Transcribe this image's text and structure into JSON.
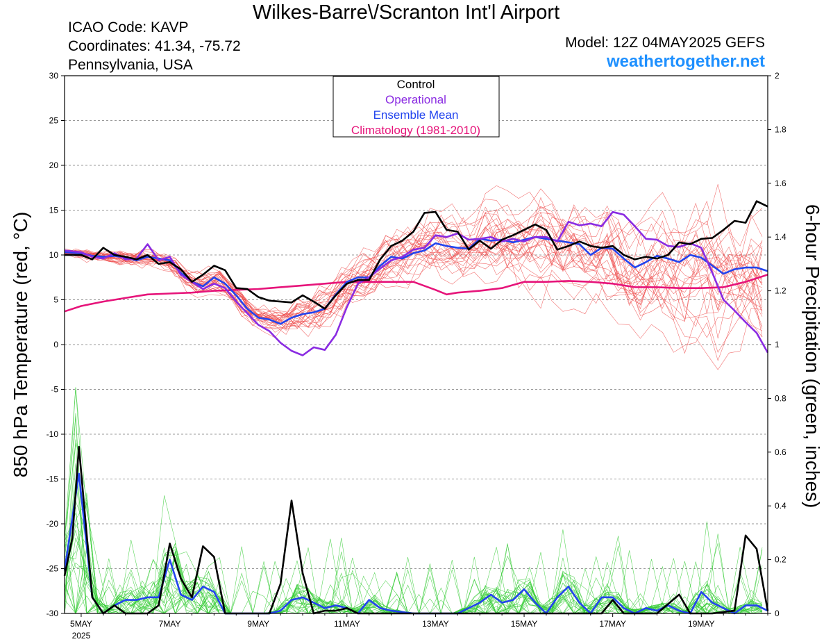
{
  "header": {
    "title": "Wilkes-Barre\\/Scranton Int'l Airport",
    "icao": "ICAO Code: KAVP",
    "coords": "Coordinates: 41.34, -75.72",
    "region": "Pennsylvania, USA",
    "model": "Model: 12Z 04MAY2025 GEFS",
    "site": "weathertogether.net"
  },
  "chart_data": {
    "type": "line",
    "ylabel": "850 hPa Temperature (red, °C)",
    "y2label": "6-hour Precipitation (green, inches)",
    "ylim": [
      -30,
      30
    ],
    "y2lim": [
      0,
      2
    ],
    "yticks": [
      30,
      25,
      20,
      15,
      10,
      5,
      0,
      -5,
      -10,
      -15,
      -20,
      -25,
      -30
    ],
    "y2ticks": [
      "2",
      "1.8",
      "1.6",
      "1.4",
      "1.2",
      "1",
      "0.8",
      "0.6",
      "0.4",
      "0.2",
      "0"
    ],
    "xlim_days": [
      4.625,
      20.5
    ],
    "xticks": [
      {
        "day": 5,
        "label": "5MAY"
      },
      {
        "day": 7,
        "label": "7MAY"
      },
      {
        "day": 9,
        "label": "9MAY"
      },
      {
        "day": 11,
        "label": "11MAY"
      },
      {
        "day": 13,
        "label": "13MAY"
      },
      {
        "day": 15,
        "label": "15MAY"
      },
      {
        "day": 17,
        "label": "17MAY"
      },
      {
        "day": 19,
        "label": "19MAY"
      }
    ],
    "year_label": "2025",
    "grid": "horizontal dashed",
    "legend": {
      "placement": "top-center",
      "entries": [
        {
          "label": "Control",
          "color": "#000000"
        },
        {
          "label": "Operational",
          "color": "#8a2be2"
        },
        {
          "label": "Ensemble Mean",
          "color": "#2244ee"
        },
        {
          "label": "Climatology (1981-2010)",
          "color": "#e6147a"
        }
      ]
    },
    "colors": {
      "control": "#000000",
      "operational": "#8a2be2",
      "mean": "#2244ee",
      "climatology": "#e6147a",
      "member_temp": "#ee4444",
      "member_precip": "#33cc33"
    },
    "temperature": {
      "control": [
        [
          4.625,
          10
        ],
        [
          5,
          10
        ],
        [
          5.25,
          9.5
        ],
        [
          5.5,
          10.8
        ],
        [
          5.75,
          10
        ],
        [
          6,
          9.8
        ],
        [
          6.25,
          9.5
        ],
        [
          6.5,
          10
        ],
        [
          6.75,
          9
        ],
        [
          7,
          9.2
        ],
        [
          7.25,
          8.4
        ],
        [
          7.5,
          7
        ],
        [
          7.75,
          7.8
        ],
        [
          8,
          8.8
        ],
        [
          8.25,
          8.3
        ],
        [
          8.5,
          6.3
        ],
        [
          8.75,
          6.2
        ],
        [
          9,
          5.3
        ],
        [
          9.25,
          4.9
        ],
        [
          9.5,
          4.8
        ],
        [
          9.75,
          4.7
        ],
        [
          10,
          5.5
        ],
        [
          10.25,
          4.8
        ],
        [
          10.5,
          4
        ],
        [
          10.75,
          5.5
        ],
        [
          11,
          6.8
        ],
        [
          11.25,
          7.2
        ],
        [
          11.5,
          7.2
        ],
        [
          11.75,
          9.5
        ],
        [
          12,
          11
        ],
        [
          12.25,
          11.6
        ],
        [
          12.5,
          12.6
        ],
        [
          12.75,
          14.7
        ],
        [
          13,
          14.8
        ],
        [
          13.25,
          12.8
        ],
        [
          13.5,
          12.6
        ],
        [
          13.75,
          10.6
        ],
        [
          14,
          11.6
        ],
        [
          14.25,
          10.7
        ],
        [
          14.5,
          11.7
        ],
        [
          14.75,
          12.2
        ],
        [
          15,
          12.8
        ],
        [
          15.25,
          13.4
        ],
        [
          15.5,
          12.8
        ],
        [
          15.75,
          10.6
        ],
        [
          16,
          11
        ],
        [
          16.25,
          11.5
        ],
        [
          16.5,
          11
        ],
        [
          16.75,
          10.8
        ],
        [
          17,
          11
        ],
        [
          17.25,
          10
        ],
        [
          17.5,
          9.5
        ],
        [
          17.75,
          9.8
        ],
        [
          18,
          9.6
        ],
        [
          18.25,
          10
        ],
        [
          18.5,
          11.4
        ],
        [
          18.75,
          11.2
        ],
        [
          19,
          11.8
        ],
        [
          19.25,
          11.9
        ],
        [
          19.5,
          12.8
        ],
        [
          19.75,
          13.8
        ],
        [
          20,
          13.6
        ],
        [
          20.25,
          16
        ],
        [
          20.5,
          15.4
        ]
      ],
      "operational": [
        [
          4.625,
          10.5
        ],
        [
          5,
          10.3
        ],
        [
          5.25,
          9.8
        ],
        [
          5.5,
          9.6
        ],
        [
          5.75,
          10.2
        ],
        [
          6,
          9.5
        ],
        [
          6.25,
          9.6
        ],
        [
          6.5,
          11.2
        ],
        [
          6.75,
          9.4
        ],
        [
          7,
          9.8
        ],
        [
          7.25,
          7.8
        ],
        [
          7.5,
          7
        ],
        [
          7.75,
          6.2
        ],
        [
          8,
          6.8
        ],
        [
          8.25,
          6.3
        ],
        [
          8.5,
          4.8
        ],
        [
          8.75,
          3.5
        ],
        [
          9,
          2.2
        ],
        [
          9.25,
          1.5
        ],
        [
          9.5,
          0.2
        ],
        [
          9.75,
          -0.7
        ],
        [
          10,
          -1.2
        ],
        [
          10.25,
          -0.3
        ],
        [
          10.5,
          -0.6
        ],
        [
          10.75,
          1.1
        ],
        [
          11,
          4.2
        ],
        [
          11.25,
          6.8
        ],
        [
          11.5,
          7.5
        ],
        [
          11.75,
          8.5
        ],
        [
          12,
          9.4
        ],
        [
          12.25,
          9.8
        ],
        [
          12.5,
          10.6
        ],
        [
          12.75,
          10.8
        ],
        [
          13,
          12.2
        ],
        [
          13.25,
          12
        ],
        [
          13.5,
          12.4
        ],
        [
          13.75,
          11.7
        ],
        [
          14,
          11.8
        ],
        [
          14.25,
          12
        ],
        [
          14.5,
          11.5
        ],
        [
          14.75,
          11.8
        ],
        [
          15,
          11.5
        ],
        [
          15.25,
          12
        ],
        [
          15.5,
          12
        ],
        [
          15.75,
          11.5
        ],
        [
          16,
          13.7
        ],
        [
          16.25,
          13.3
        ],
        [
          16.5,
          13.5
        ],
        [
          16.75,
          13.2
        ],
        [
          17,
          14.8
        ],
        [
          17.25,
          14.5
        ],
        [
          17.5,
          13.2
        ],
        [
          17.75,
          11.8
        ],
        [
          18,
          11.7
        ],
        [
          18.25,
          11
        ],
        [
          18.5,
          10.9
        ],
        [
          18.75,
          11.3
        ],
        [
          19,
          10.8
        ],
        [
          19.25,
          8
        ],
        [
          19.5,
          5
        ],
        [
          19.75,
          3.8
        ],
        [
          20,
          2.5
        ],
        [
          20.25,
          1.3
        ],
        [
          20.5,
          -0.9
        ]
      ],
      "mean": [
        [
          4.625,
          10.3
        ],
        [
          5,
          10.2
        ],
        [
          5.25,
          9.9
        ],
        [
          5.5,
          9.8
        ],
        [
          5.75,
          9.9
        ],
        [
          6,
          9.7
        ],
        [
          6.25,
          9.4
        ],
        [
          6.5,
          9.8
        ],
        [
          6.75,
          9.6
        ],
        [
          7,
          9.4
        ],
        [
          7.25,
          8
        ],
        [
          7.5,
          7
        ],
        [
          7.75,
          6.5
        ],
        [
          8,
          7.5
        ],
        [
          8.25,
          6.8
        ],
        [
          8.5,
          5.5
        ],
        [
          8.75,
          4
        ],
        [
          9,
          3
        ],
        [
          9.25,
          2.8
        ],
        [
          9.5,
          2.3
        ],
        [
          9.75,
          3
        ],
        [
          10,
          3.4
        ],
        [
          10.25,
          3.6
        ],
        [
          10.5,
          4
        ],
        [
          10.75,
          5.6
        ],
        [
          11,
          7
        ],
        [
          11.25,
          7.5
        ],
        [
          11.5,
          7.5
        ],
        [
          11.75,
          8.8
        ],
        [
          12,
          9.8
        ],
        [
          12.25,
          9.6
        ],
        [
          12.5,
          10.2
        ],
        [
          12.75,
          10.5
        ],
        [
          13,
          11.3
        ],
        [
          13.25,
          11
        ],
        [
          13.5,
          10.8
        ],
        [
          13.75,
          10.7
        ],
        [
          14,
          11.8
        ],
        [
          14.25,
          11.6
        ],
        [
          14.5,
          11.7
        ],
        [
          14.75,
          11.4
        ],
        [
          15,
          11.7
        ],
        [
          15.25,
          12
        ],
        [
          15.5,
          11.8
        ],
        [
          15.75,
          11.6
        ],
        [
          16,
          11.4
        ],
        [
          16.25,
          11.2
        ],
        [
          16.5,
          10
        ],
        [
          16.75,
          10.8
        ],
        [
          17,
          10.7
        ],
        [
          17.25,
          9.6
        ],
        [
          17.5,
          8.6
        ],
        [
          17.75,
          9.2
        ],
        [
          18,
          9.9
        ],
        [
          18.25,
          9.6
        ],
        [
          18.5,
          9.2
        ],
        [
          18.75,
          10
        ],
        [
          19,
          9.7
        ],
        [
          19.25,
          8.8
        ],
        [
          19.5,
          7.9
        ],
        [
          19.75,
          8.4
        ],
        [
          20,
          8.6
        ],
        [
          20.25,
          8.6
        ],
        [
          20.5,
          8.2
        ]
      ],
      "climatology": [
        [
          4.625,
          3.7
        ],
        [
          5,
          4.3
        ],
        [
          5.5,
          4.8
        ],
        [
          6,
          5.2
        ],
        [
          6.5,
          5.6
        ],
        [
          7,
          5.7
        ],
        [
          7.5,
          5.8
        ],
        [
          8,
          6
        ],
        [
          8.5,
          6.1
        ],
        [
          9,
          6.2
        ],
        [
          9.5,
          6.4
        ],
        [
          10,
          6.6
        ],
        [
          10.5,
          6.8
        ],
        [
          11,
          7
        ],
        [
          11.5,
          7
        ],
        [
          12,
          7
        ],
        [
          12.5,
          7
        ],
        [
          13,
          6.1
        ],
        [
          13.25,
          5.6
        ],
        [
          13.5,
          5.8
        ],
        [
          14,
          6
        ],
        [
          14.5,
          6.3
        ],
        [
          15,
          7
        ],
        [
          15.5,
          7
        ],
        [
          16,
          7.1
        ],
        [
          16.5,
          7
        ],
        [
          17,
          6.8
        ],
        [
          17.5,
          6.4
        ],
        [
          18,
          6.4
        ],
        [
          18.5,
          6.3
        ],
        [
          19,
          6.3
        ],
        [
          19.5,
          6.4
        ],
        [
          20,
          7
        ],
        [
          20.5,
          7.8
        ]
      ]
    },
    "precipitation": {
      "control": [
        [
          4.625,
          0.14
        ],
        [
          4.8,
          0.28
        ],
        [
          4.95,
          0.62
        ],
        [
          5.25,
          0.06
        ],
        [
          5.5,
          0
        ],
        [
          5.75,
          0.03
        ],
        [
          6,
          0
        ],
        [
          6.25,
          0
        ],
        [
          6.5,
          0
        ],
        [
          6.75,
          0.03
        ],
        [
          7,
          0.26
        ],
        [
          7.25,
          0.13
        ],
        [
          7.5,
          0.06
        ],
        [
          7.75,
          0.25
        ],
        [
          8,
          0.21
        ],
        [
          8.25,
          0
        ],
        [
          8.5,
          0
        ],
        [
          8.75,
          0
        ],
        [
          9,
          0
        ],
        [
          9.25,
          0
        ],
        [
          9.5,
          0.11
        ],
        [
          9.75,
          0.42
        ],
        [
          10,
          0.15
        ],
        [
          10.25,
          0
        ],
        [
          10.5,
          0.01
        ],
        [
          10.75,
          0.01
        ],
        [
          11,
          0.02
        ],
        [
          11.25,
          0
        ],
        [
          11.5,
          0
        ],
        [
          16.75,
          0
        ],
        [
          17,
          0.05
        ],
        [
          17.25,
          0
        ],
        [
          17.5,
          0
        ],
        [
          18,
          0
        ],
        [
          18.5,
          0.07
        ],
        [
          18.75,
          0
        ],
        [
          19,
          0
        ],
        [
          19.25,
          0
        ],
        [
          19.75,
          0.01
        ],
        [
          20,
          0.29
        ],
        [
          20.25,
          0.24
        ],
        [
          20.5,
          0.01
        ]
      ],
      "mean": [
        [
          4.625,
          0.16
        ],
        [
          4.95,
          0.52
        ],
        [
          5.25,
          0.06
        ],
        [
          5.5,
          0
        ],
        [
          5.75,
          0.03
        ],
        [
          6,
          0.05
        ],
        [
          6.25,
          0.05
        ],
        [
          6.5,
          0.06
        ],
        [
          6.75,
          0.06
        ],
        [
          7,
          0.2
        ],
        [
          7.25,
          0.07
        ],
        [
          7.5,
          0.05
        ],
        [
          7.75,
          0.1
        ],
        [
          8,
          0.08
        ],
        [
          8.25,
          0
        ],
        [
          8.5,
          0
        ],
        [
          8.75,
          0
        ],
        [
          9,
          0
        ],
        [
          9.25,
          0
        ],
        [
          9.5,
          0.01
        ],
        [
          9.75,
          0.05
        ],
        [
          10,
          0.06
        ],
        [
          10.25,
          0.04
        ],
        [
          10.5,
          0.02
        ],
        [
          10.75,
          0.03
        ],
        [
          11,
          0.02
        ],
        [
          11.25,
          0
        ],
        [
          11.5,
          0.05
        ],
        [
          11.75,
          0.02
        ],
        [
          12,
          0.01
        ],
        [
          12.5,
          0
        ],
        [
          13,
          0
        ],
        [
          13.5,
          0
        ],
        [
          14,
          0.04
        ],
        [
          14.25,
          0.07
        ],
        [
          14.5,
          0.04
        ],
        [
          14.75,
          0.05
        ],
        [
          15,
          0.09
        ],
        [
          15.25,
          0.04
        ],
        [
          15.5,
          0
        ],
        [
          15.75,
          0.06
        ],
        [
          16,
          0.1
        ],
        [
          16.25,
          0.04
        ],
        [
          16.5,
          0
        ],
        [
          16.75,
          0.06
        ],
        [
          17,
          0.06
        ],
        [
          17.25,
          0.02
        ],
        [
          17.5,
          0
        ],
        [
          17.75,
          0.02
        ],
        [
          18,
          0.01
        ],
        [
          18.25,
          0.03
        ],
        [
          18.5,
          0.01
        ],
        [
          18.75,
          0
        ],
        [
          19,
          0.08
        ],
        [
          19.25,
          0.04
        ],
        [
          19.5,
          0.02
        ],
        [
          19.75,
          0
        ],
        [
          20,
          0.03
        ],
        [
          20.25,
          0.03
        ],
        [
          20.5,
          0.01
        ]
      ]
    }
  }
}
